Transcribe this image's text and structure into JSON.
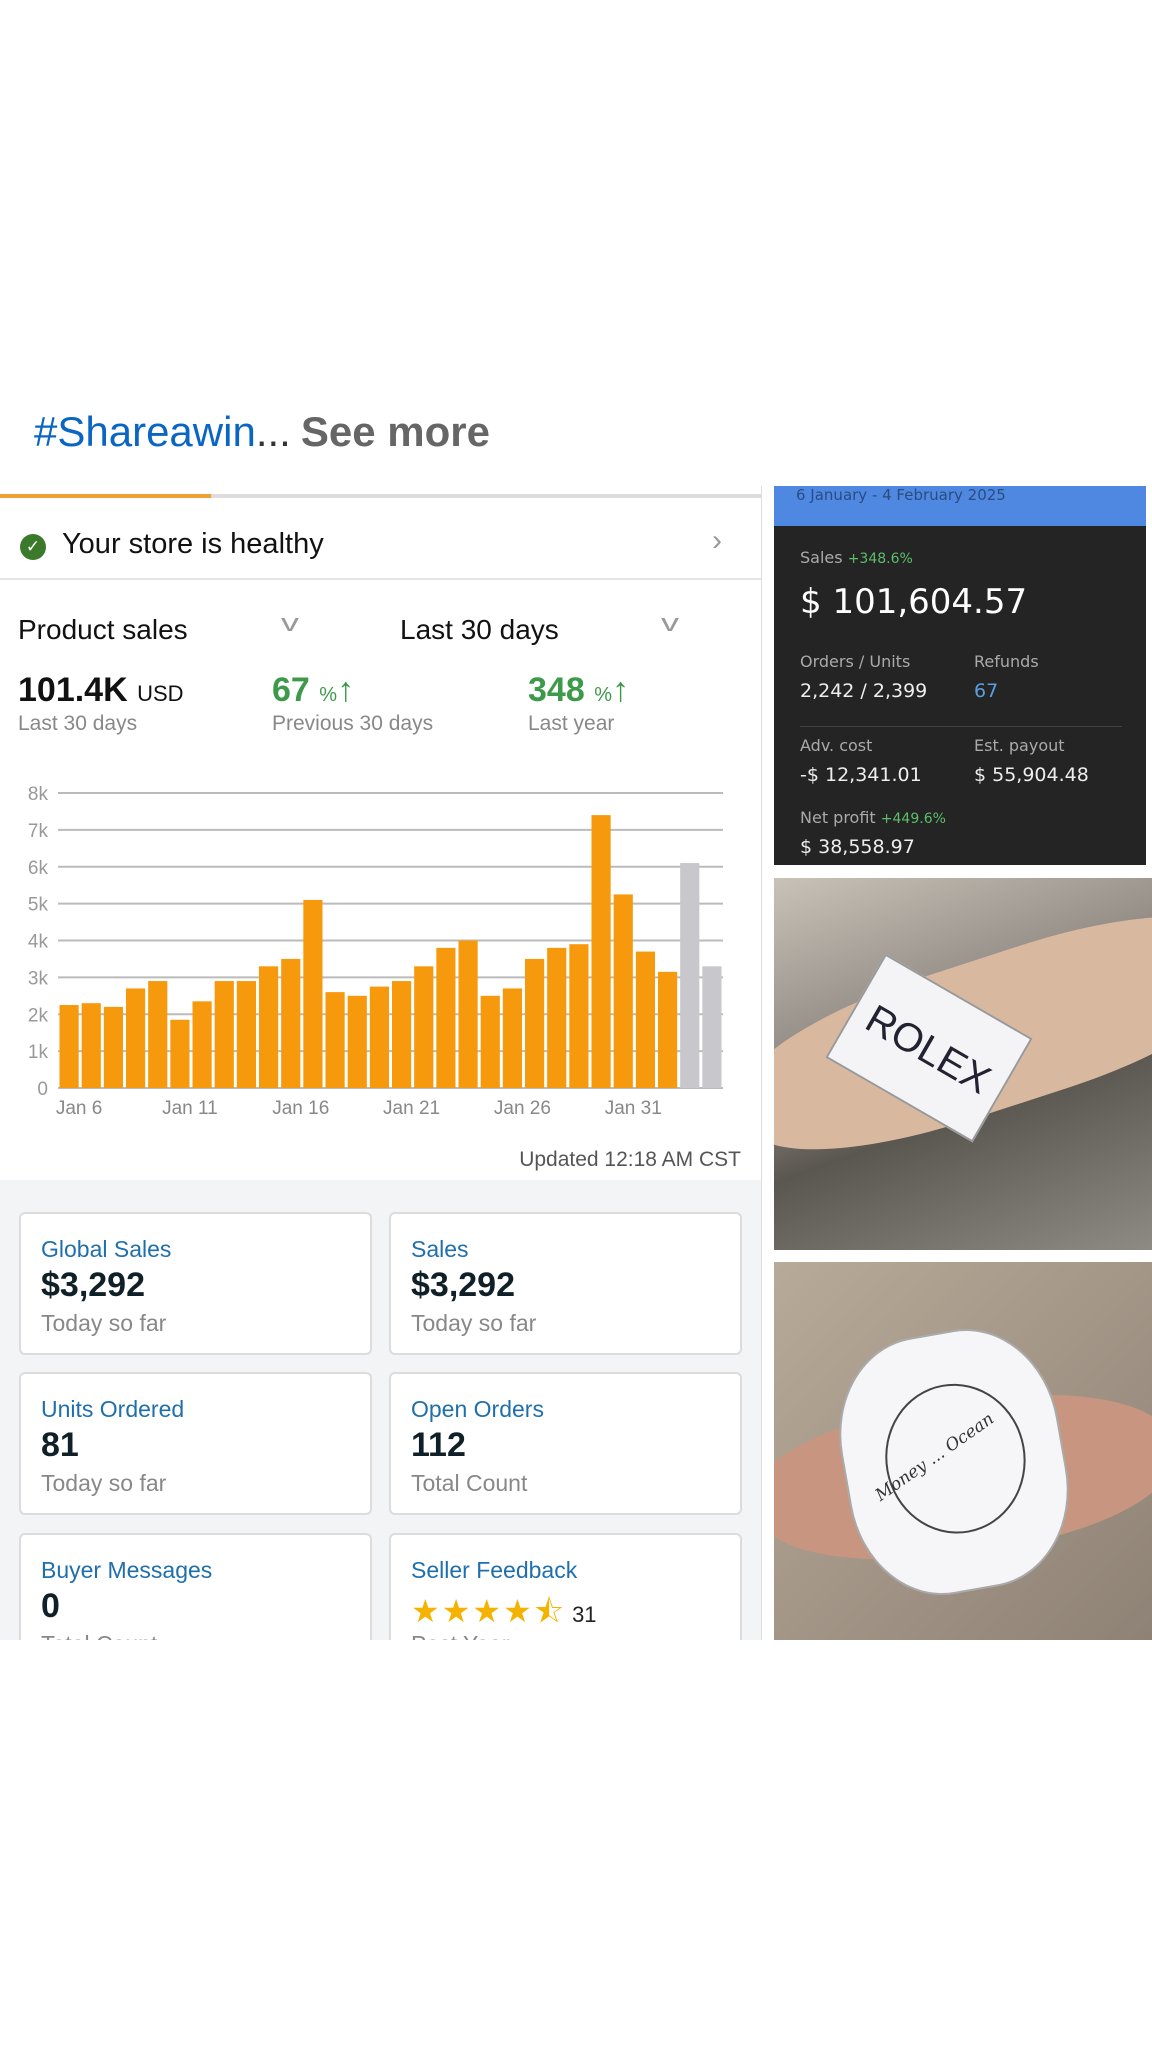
{
  "post": {
    "hashtag": "#Shareawin",
    "ellipsis": "...",
    "see_more": "See more"
  },
  "dashboard": {
    "progress_fraction": 0.28,
    "health": {
      "label": "Your store is healthy",
      "icon": "check-circle-icon"
    },
    "metric_select": "Product sales",
    "range_select": "Last 30 days",
    "stats": [
      {
        "value": "101.4K",
        "unit": "USD",
        "label": "Last 30 days"
      },
      {
        "value": "67",
        "unit": "%",
        "label": "Previous 30 days",
        "trend": "up"
      },
      {
        "value": "348",
        "unit": "%",
        "label": "Last year",
        "trend": "up"
      }
    ],
    "updated": "Updated 12:18 AM CST",
    "cards": [
      {
        "title": "Global Sales",
        "value": "$3,292",
        "sub": "Today so far"
      },
      {
        "title": "Sales",
        "value": "$3,292",
        "sub": "Today so far"
      },
      {
        "title": "Units Ordered",
        "value": "81",
        "sub": "Today so far"
      },
      {
        "title": "Open Orders",
        "value": "112",
        "sub": "Total Count"
      },
      {
        "title": "Buyer Messages",
        "value": "0",
        "sub": "Total Count"
      },
      {
        "title": "Seller Feedback",
        "rating": 4.5,
        "count": "31",
        "sub": "Past Year"
      }
    ]
  },
  "chart_data": {
    "type": "bar",
    "ylim": [
      0,
      8000
    ],
    "yticks": [
      "0",
      "1k",
      "2k",
      "3k",
      "4k",
      "5k",
      "6k",
      "7k",
      "8k"
    ],
    "xtick_labels": [
      "Jan 6",
      "Jan 11",
      "Jan 16",
      "Jan 21",
      "Jan 26",
      "Jan 31"
    ],
    "categories": [
      "Jan 6",
      "Jan 7",
      "Jan 8",
      "Jan 9",
      "Jan 10",
      "Jan 11",
      "Jan 12",
      "Jan 13",
      "Jan 14",
      "Jan 15",
      "Jan 16",
      "Jan 17",
      "Jan 18",
      "Jan 19",
      "Jan 20",
      "Jan 21",
      "Jan 22",
      "Jan 23",
      "Jan 24",
      "Jan 25",
      "Jan 26",
      "Jan 27",
      "Jan 28",
      "Jan 29",
      "Jan 30",
      "Jan 31",
      "Feb 1",
      "Feb 2",
      "Feb 3",
      "Feb 4"
    ],
    "values": [
      2250,
      2300,
      2200,
      2700,
      2900,
      1850,
      2350,
      2900,
      2900,
      3300,
      3500,
      5100,
      2600,
      2500,
      2750,
      2900,
      3300,
      3800,
      4000,
      2500,
      2700,
      3500,
      3800,
      3900,
      7400,
      5250,
      3700,
      3150,
      6100,
      3300
    ],
    "colors": {
      "default": "#f7990c",
      "highlight": "#c8c8cc"
    },
    "highlighted": [
      "Feb 3",
      "Feb 4"
    ],
    "grid": true
  },
  "summary": {
    "date_range": "6 January - 4 February 2025",
    "sales_label": "Sales",
    "sales_change": "+348.6%",
    "sales_value": "$ 101,604.57",
    "orders_label": "Orders / Units",
    "orders_value": "2,242 / 2,399",
    "refunds_label": "Refunds",
    "refunds_value": "67",
    "adv_label": "Adv. cost",
    "adv_value": "-$ 12,341.01",
    "payout_label": "Est. payout",
    "payout_value": "$ 55,904.48",
    "profit_label": "Net profit",
    "profit_change": "+449.6%",
    "profit_value": "$ 38,558.97",
    "accent": "#4f88e0"
  },
  "photos": [
    {
      "handwritten": "ROLEX"
    },
    {
      "handwritten": "Money ... Ocean"
    }
  ]
}
